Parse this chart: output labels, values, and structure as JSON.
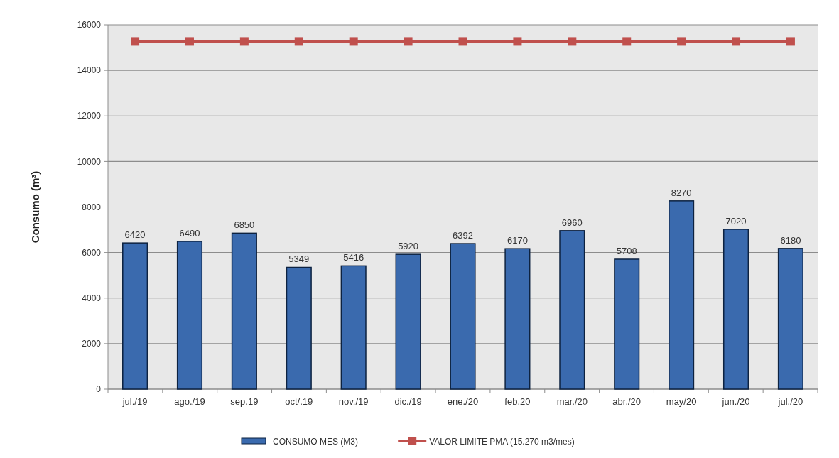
{
  "chart_data": {
    "type": "bar",
    "ylabel": "Consumo (m³)",
    "categories": [
      "jul./19",
      "ago./19",
      "sep.19",
      "oct/.19",
      "nov./19",
      "dic./19",
      "ene./20",
      "feb.20",
      "mar./20",
      "abr./20",
      "may/20",
      "jun./20",
      "jul./20"
    ],
    "series": [
      {
        "name": "CONSUMO MES (M3)",
        "color": "#3a6aae",
        "values": [
          6420,
          6490,
          6850,
          5349,
          5416,
          5920,
          6392,
          6170,
          6960,
          5708,
          8270,
          7020,
          6180
        ],
        "value_labels": [
          "6420",
          "6490",
          "6850",
          "5349",
          "5416",
          "5920",
          "6392",
          "6170",
          "6960",
          "5708",
          "8270",
          "7020",
          "6180"
        ]
      },
      {
        "name": "VALOR LIMITE PMA (15.270 m3/mes)",
        "type": "line",
        "color": "#c0504d",
        "marker": "square",
        "values": [
          15270,
          15270,
          15270,
          15270,
          15270,
          15270,
          15270,
          15270,
          15270,
          15270,
          15270,
          15270,
          15270
        ]
      }
    ],
    "ylim": [
      0,
      16000
    ],
    "yticks": [
      0,
      2000,
      4000,
      6000,
      8000,
      10000,
      12000,
      14000,
      16000
    ],
    "grid": "y",
    "legend": "bottom"
  }
}
